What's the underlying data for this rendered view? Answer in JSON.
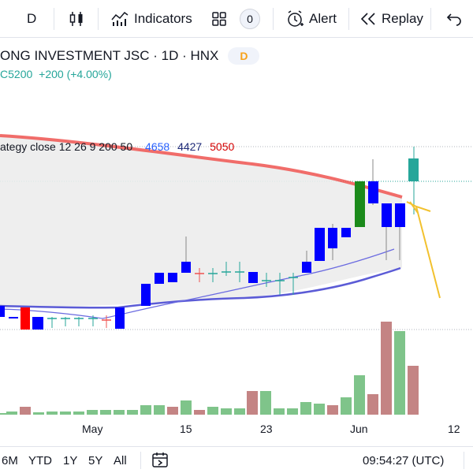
{
  "toolbar": {
    "interval": "D",
    "indicators_label": "Indicators",
    "layouts_count": "0",
    "alert_label": "Alert",
    "replay_label": "Replay"
  },
  "legend": {
    "title": "ONG INVESTMENT JSC · 1D · HNX",
    "badge": "D",
    "close_prefix": "C",
    "close": "5200",
    "change": "+200 (+4.00%)",
    "strategy_label": "ategy close 12 26 9 200 50",
    "strategy_values": [
      "4658",
      "4427",
      "5050"
    ]
  },
  "x_axis": {
    "labels": [
      "May",
      "15",
      "23",
      "Jun",
      "12"
    ]
  },
  "bottom_bar": {
    "ranges": [
      "6M",
      "YTD",
      "1Y",
      "5Y",
      "All"
    ],
    "time": "09:54:27 (UTC)"
  },
  "colors": {
    "up_candle": "#0000ff",
    "down_candle": "#0000ff",
    "green_candle": "#1b8a1b",
    "teal_candle": "#26a69a",
    "ma200": "#ef5350",
    "ma_slow": "#5b5bd6",
    "ma_fast": "#6a6ae0",
    "vol_up": "#7fc48a",
    "vol_down": "#c48484",
    "annotation": "#f2c12e"
  },
  "icons": [
    "candles-icon",
    "indicators-icon",
    "layouts-icon",
    "alert-icon",
    "replay-icon",
    "undo-icon",
    "date-range-icon"
  ]
}
